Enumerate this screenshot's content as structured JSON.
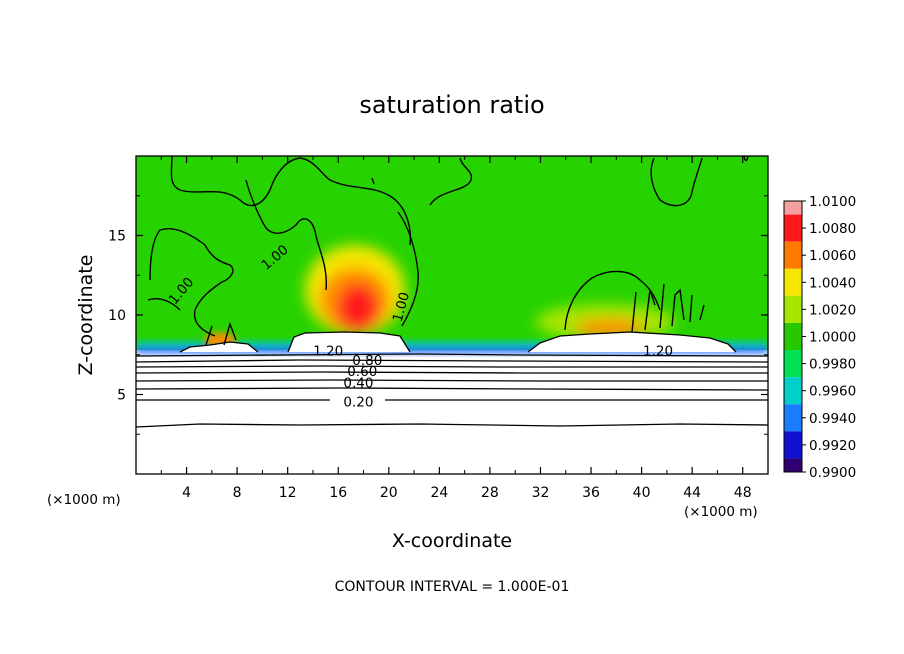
{
  "chart_data": {
    "type": "heatmap",
    "title": "saturation ratio",
    "xlabel": "X-coordinate",
    "ylabel": "Z-coordinate",
    "x_unit_left": "(×1000 m)",
    "x_unit_right": "(×1000 m)",
    "xlim": [
      0,
      50
    ],
    "ylim": [
      0,
      20
    ],
    "x_ticks": [
      "4",
      "8",
      "12",
      "16",
      "20",
      "24",
      "28",
      "32",
      "36",
      "40",
      "44",
      "48"
    ],
    "x_tick_values": [
      4,
      8,
      12,
      16,
      20,
      24,
      28,
      32,
      36,
      40,
      44,
      48
    ],
    "y_ticks": [
      "5",
      "10",
      "15"
    ],
    "y_tick_values": [
      5,
      10,
      15
    ],
    "colorbar": {
      "labels": [
        "1.0100",
        "1.0080",
        "1.0060",
        "1.0040",
        "1.0020",
        "1.0000",
        "0.9980",
        "0.9960",
        "0.9940",
        "0.9920",
        "0.9900"
      ],
      "colors": [
        "#f4a0a0",
        "#ff1a1a",
        "#ff7a00",
        "#f5e600",
        "#a8e600",
        "#28c800",
        "#00e050",
        "#00d0c8",
        "#1a7cff",
        "#1010d0",
        "#300070"
      ]
    },
    "contour_labels": [
      {
        "text": "1.00",
        "x": 3.6,
        "y": 11.5,
        "angle": -50
      },
      {
        "text": "1.00",
        "x": 11.0,
        "y": 13.6,
        "angle": -40
      },
      {
        "text": "1.00",
        "x": 21.0,
        "y": 10.5,
        "angle": -75
      },
      {
        "text": "1.20",
        "x": 15.2,
        "y": 7.7,
        "angle": 0
      },
      {
        "text": "0.80",
        "x": 18.3,
        "y": 7.1,
        "angle": 0
      },
      {
        "text": "0.60",
        "x": 17.9,
        "y": 6.4,
        "angle": 0
      },
      {
        "text": "0.40",
        "x": 17.6,
        "y": 5.7,
        "angle": 0
      },
      {
        "text": "0.20",
        "x": 17.6,
        "y": 4.5,
        "angle": 0
      },
      {
        "text": "1.20",
        "x": 41.3,
        "y": 7.7,
        "angle": 0
      }
    ],
    "footer": "CONTOUR INTERVAL = 1.000E-01"
  }
}
